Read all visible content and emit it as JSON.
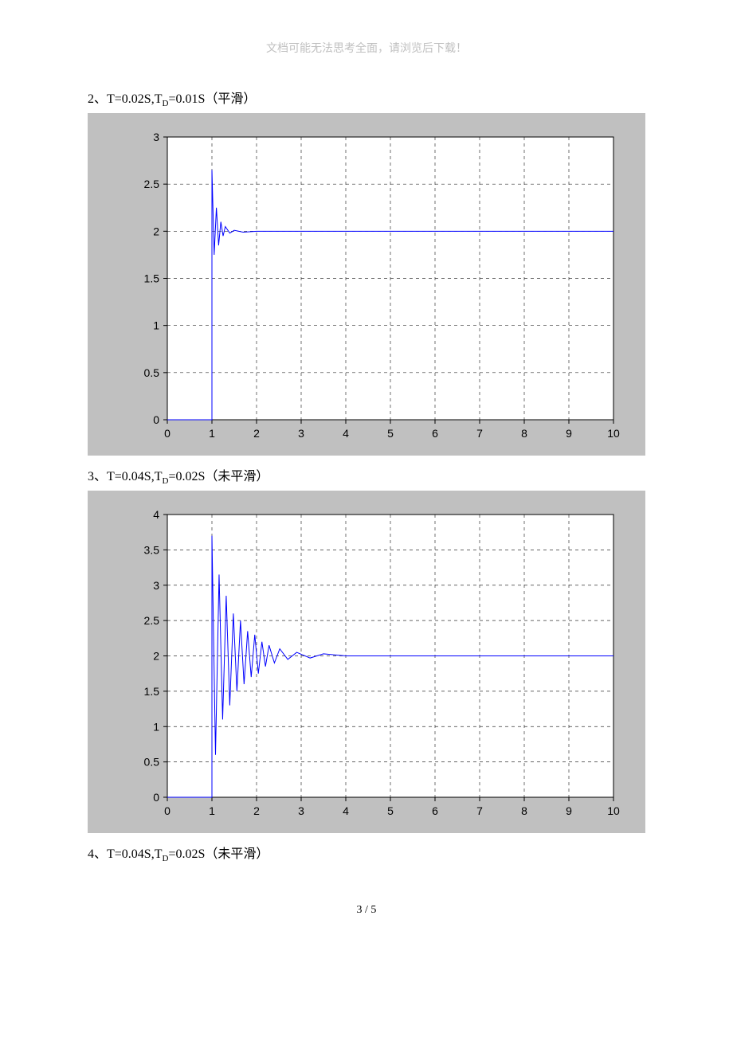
{
  "header_note": "文档可能无法思考全面，请浏览后下载！",
  "page_number": "3 / 5",
  "captions": {
    "c2": "2、T=0.02S,T_D=0.01S（平滑）",
    "c3": "3、T=0.04S,T_D=0.02S（未平滑）",
    "c4": "4、T=0.04S,T_D=0.02S（未平滑）"
  },
  "chart1": {
    "type": "line",
    "bg_color": "#c0c0c0",
    "plot_bg": "#ffffff",
    "line_color": "#0000ff",
    "axis_color": "#000000",
    "grid_color": "#000000",
    "grid_dash": "4 4",
    "tick_fontsize": 14,
    "xlim": [
      0,
      10
    ],
    "ylim": [
      0,
      3
    ],
    "xticks": [
      0,
      1,
      2,
      3,
      4,
      5,
      6,
      7,
      8,
      9,
      10
    ],
    "yticks": [
      0,
      0.5,
      1,
      1.5,
      2,
      2.5,
      3
    ],
    "line_width": 1,
    "series": [
      {
        "x": 0,
        "y": 0
      },
      {
        "x": 0.99,
        "y": 0
      },
      {
        "x": 1.0,
        "y": 0
      },
      {
        "x": 1.0,
        "y": 2.65
      },
      {
        "x": 1.05,
        "y": 1.75
      },
      {
        "x": 1.1,
        "y": 2.25
      },
      {
        "x": 1.15,
        "y": 1.85
      },
      {
        "x": 1.2,
        "y": 2.1
      },
      {
        "x": 1.25,
        "y": 1.95
      },
      {
        "x": 1.3,
        "y": 2.05
      },
      {
        "x": 1.4,
        "y": 1.98
      },
      {
        "x": 1.5,
        "y": 2.01
      },
      {
        "x": 1.7,
        "y": 1.99
      },
      {
        "x": 2,
        "y": 2.0
      },
      {
        "x": 10,
        "y": 2.0
      }
    ]
  },
  "chart2": {
    "type": "line",
    "bg_color": "#c0c0c0",
    "plot_bg": "#ffffff",
    "line_color": "#0000ff",
    "axis_color": "#000000",
    "grid_color": "#000000",
    "grid_dash": "4 4",
    "tick_fontsize": 14,
    "xlim": [
      0,
      10
    ],
    "ylim": [
      0,
      4
    ],
    "xticks": [
      0,
      1,
      2,
      3,
      4,
      5,
      6,
      7,
      8,
      9,
      10
    ],
    "yticks": [
      0,
      0.5,
      1,
      1.5,
      2,
      2.5,
      3,
      3.5,
      4
    ],
    "line_width": 1,
    "series": [
      {
        "x": 0,
        "y": 0
      },
      {
        "x": 0.99,
        "y": 0
      },
      {
        "x": 1.0,
        "y": 0
      },
      {
        "x": 1.0,
        "y": 3.7
      },
      {
        "x": 1.08,
        "y": 0.6
      },
      {
        "x": 1.16,
        "y": 3.15
      },
      {
        "x": 1.24,
        "y": 1.1
      },
      {
        "x": 1.32,
        "y": 2.85
      },
      {
        "x": 1.4,
        "y": 1.3
      },
      {
        "x": 1.48,
        "y": 2.6
      },
      {
        "x": 1.56,
        "y": 1.5
      },
      {
        "x": 1.64,
        "y": 2.5
      },
      {
        "x": 1.72,
        "y": 1.6
      },
      {
        "x": 1.8,
        "y": 2.35
      },
      {
        "x": 1.88,
        "y": 1.7
      },
      {
        "x": 1.96,
        "y": 2.3
      },
      {
        "x": 2.04,
        "y": 1.75
      },
      {
        "x": 2.12,
        "y": 2.2
      },
      {
        "x": 2.2,
        "y": 1.85
      },
      {
        "x": 2.28,
        "y": 2.15
      },
      {
        "x": 2.4,
        "y": 1.9
      },
      {
        "x": 2.52,
        "y": 2.1
      },
      {
        "x": 2.7,
        "y": 1.95
      },
      {
        "x": 2.9,
        "y": 2.05
      },
      {
        "x": 3.2,
        "y": 1.97
      },
      {
        "x": 3.5,
        "y": 2.03
      },
      {
        "x": 4,
        "y": 2.0
      },
      {
        "x": 10,
        "y": 2.0
      }
    ]
  }
}
